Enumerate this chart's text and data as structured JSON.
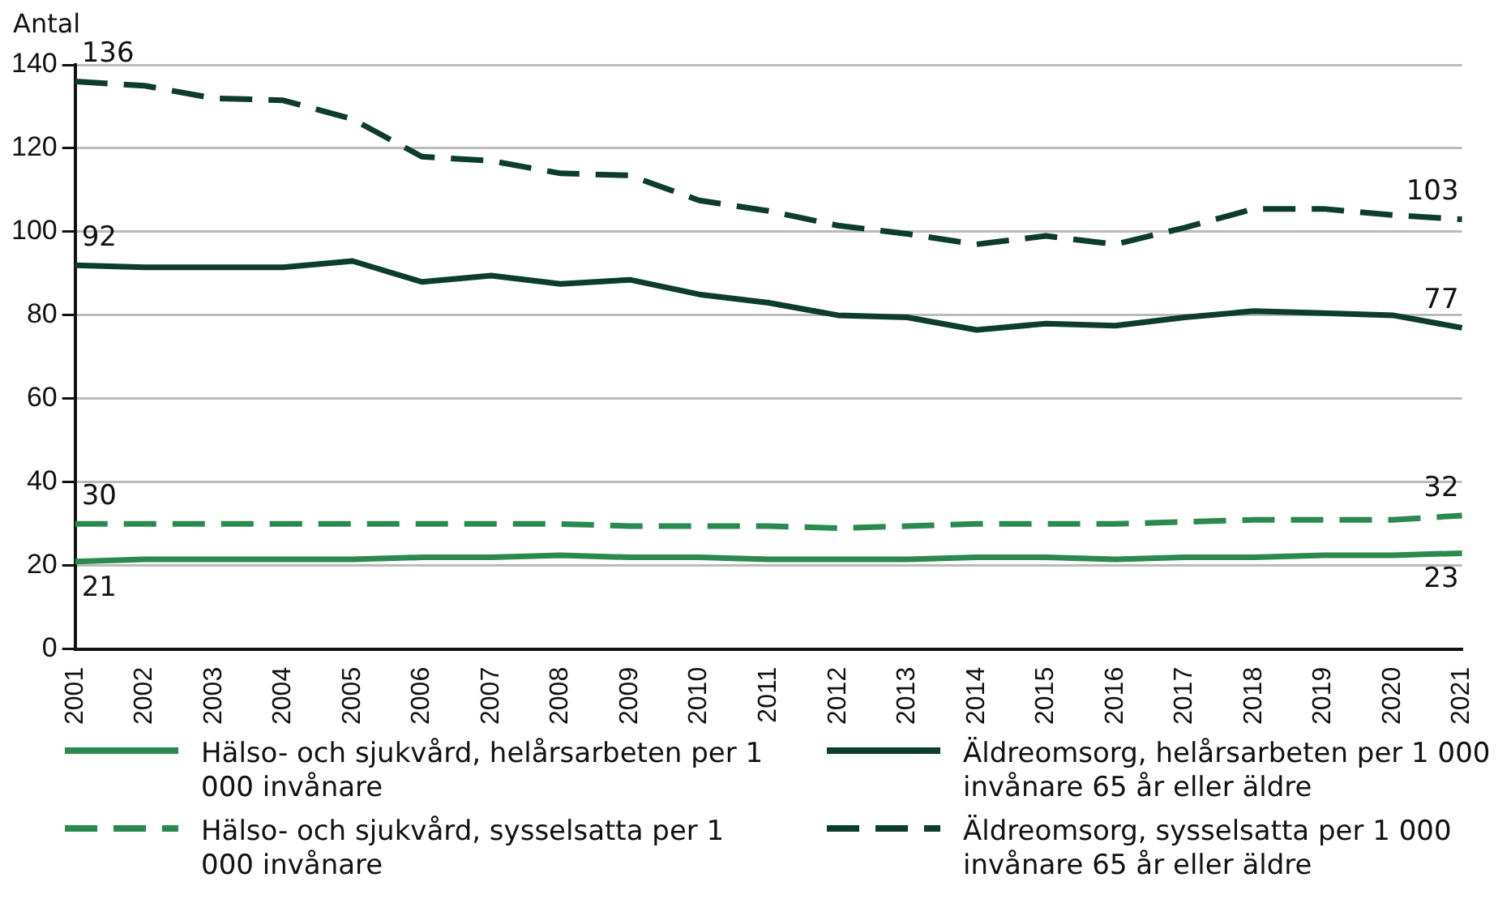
{
  "chart_data": {
    "type": "line",
    "ylabel": "Antal",
    "categories": [
      "2001",
      "2002",
      "2003",
      "2004",
      "2005",
      "2006",
      "2007",
      "2008",
      "2009",
      "2010",
      "2011",
      "2012",
      "2013",
      "2014",
      "2015",
      "2016",
      "2017",
      "2018",
      "2019",
      "2020",
      "2021"
    ],
    "ylim": [
      0,
      140
    ],
    "yticks": [
      0,
      20,
      40,
      60,
      80,
      100,
      120,
      140
    ],
    "grid": "y",
    "legend": "bottom",
    "series": [
      {
        "name": "Hälso- och sjukvård, helårsarbeten per 1 000 invånare",
        "color": "#2a8a4e",
        "line_style": "solid",
        "values": [
          21,
          21.5,
          21.5,
          21.5,
          21.5,
          22,
          22,
          22.5,
          22,
          22,
          21.5,
          21.5,
          21.5,
          22,
          22,
          21.5,
          22,
          22,
          22.5,
          22.5,
          23
        ],
        "value_labels": [
          "21",
          null,
          null,
          null,
          null,
          null,
          null,
          null,
          null,
          null,
          null,
          null,
          null,
          null,
          null,
          null,
          null,
          null,
          null,
          null,
          "23"
        ]
      },
      {
        "name": "Hälso- och sjukvård, sysselsatta per 1 000 invånare",
        "color": "#2a8a4e",
        "line_style": "dashed",
        "values": [
          30,
          30,
          30,
          30,
          30,
          30,
          30,
          30,
          29.5,
          29.5,
          29.5,
          29,
          29.5,
          30,
          30,
          30,
          30.5,
          31,
          31,
          31,
          32
        ],
        "value_labels": [
          "30",
          null,
          null,
          null,
          null,
          null,
          null,
          null,
          null,
          null,
          null,
          null,
          null,
          null,
          null,
          null,
          null,
          null,
          null,
          null,
          "32"
        ]
      },
      {
        "name": "Äldreomsorg, helårsarbeten per 1 000 invånare 65 år eller äldre",
        "color": "#0b3d2a",
        "line_style": "solid",
        "values": [
          92,
          91.5,
          91.5,
          91.5,
          93,
          88,
          89.5,
          87.5,
          88.5,
          85,
          83,
          80,
          79.5,
          76.5,
          78,
          77.5,
          79.5,
          81,
          80.5,
          80,
          77
        ],
        "value_labels": [
          "92",
          null,
          null,
          null,
          null,
          null,
          null,
          null,
          null,
          null,
          null,
          null,
          null,
          null,
          null,
          null,
          null,
          null,
          null,
          null,
          "77"
        ]
      },
      {
        "name": "Äldreomsorg, sysselsatta per 1 000 invånare 65 år eller äldre",
        "color": "#0b3d2a",
        "line_style": "dashed",
        "values": [
          136,
          135,
          132,
          131.5,
          127,
          118,
          117,
          114,
          113.5,
          107.5,
          105,
          101.5,
          99.5,
          97,
          99,
          97,
          101,
          105.5,
          105.5,
          104,
          103
        ],
        "value_labels": [
          "136",
          null,
          null,
          null,
          null,
          null,
          null,
          null,
          null,
          null,
          null,
          null,
          null,
          null,
          null,
          null,
          null,
          null,
          null,
          null,
          "103"
        ]
      }
    ]
  }
}
